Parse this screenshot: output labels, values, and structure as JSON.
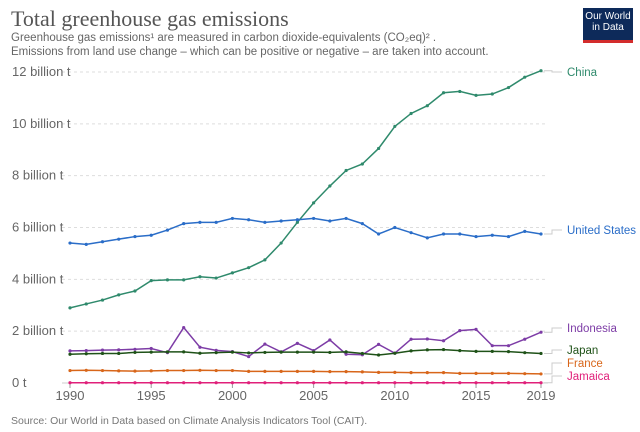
{
  "header": {
    "title": "Total greenhouse gas emissions",
    "subtitle_line1": "Greenhouse gas emissions¹ are measured in carbon dioxide-equivalents (CO₂eq)² .",
    "subtitle_line2": "Emissions from land use change – which can be positive or negative – are taken into account.",
    "logo": "Our World in Data"
  },
  "source": "Source: Our World in Data based on Climate Analysis Indicators Tool (CAIT).",
  "chart_data": {
    "type": "line",
    "title": "Total greenhouse gas emissions",
    "xlabel": "",
    "ylabel": "",
    "x": [
      1990,
      1991,
      1992,
      1993,
      1994,
      1995,
      1996,
      1997,
      1998,
      1999,
      2000,
      2001,
      2002,
      2003,
      2004,
      2005,
      2006,
      2007,
      2008,
      2009,
      2010,
      2011,
      2012,
      2013,
      2014,
      2015,
      2016,
      2017,
      2018,
      2019
    ],
    "xlim": [
      1990,
      2019
    ],
    "ylim": [
      0,
      12
    ],
    "x_ticks": [
      "1990",
      "1995",
      "2000",
      "2005",
      "2010",
      "2015",
      "2019"
    ],
    "y_ticks": [
      {
        "value": 0,
        "label": "0 t"
      },
      {
        "value": 2,
        "label": "2 billion t"
      },
      {
        "value": 4,
        "label": "4 billion t"
      },
      {
        "value": 6,
        "label": "6 billion t"
      },
      {
        "value": 8,
        "label": "8 billion t"
      },
      {
        "value": 10,
        "label": "10 billion t"
      },
      {
        "value": 12,
        "label": "12 billion t"
      }
    ],
    "y_unit": "billion t",
    "grid": "horizontal dashed",
    "legend": "right, inline labels",
    "series": [
      {
        "name": "China",
        "color": "#2f8a6c",
        "values": [
          2.9,
          3.05,
          3.2,
          3.4,
          3.55,
          3.95,
          3.98,
          3.98,
          4.1,
          4.05,
          4.25,
          4.45,
          4.75,
          5.4,
          6.2,
          6.95,
          7.6,
          8.2,
          8.45,
          9.05,
          9.9,
          10.4,
          10.7,
          11.2,
          11.25,
          11.1,
          11.15,
          11.4,
          11.8,
          12.05
        ]
      },
      {
        "name": "United States",
        "color": "#2a6dc8",
        "values": [
          5.4,
          5.35,
          5.45,
          5.55,
          5.65,
          5.7,
          5.9,
          6.15,
          6.2,
          6.2,
          6.35,
          6.3,
          6.2,
          6.25,
          6.3,
          6.35,
          6.25,
          6.35,
          6.15,
          5.75,
          6.0,
          5.8,
          5.6,
          5.75,
          5.75,
          5.65,
          5.7,
          5.65,
          5.85,
          5.75
        ]
      },
      {
        "name": "Indonesia",
        "color": "#7d3ca6",
        "values": [
          1.24,
          1.25,
          1.27,
          1.28,
          1.3,
          1.33,
          1.17,
          2.14,
          1.38,
          1.26,
          1.21,
          1.02,
          1.5,
          1.2,
          1.53,
          1.25,
          1.66,
          1.11,
          1.09,
          1.49,
          1.15,
          1.69,
          1.7,
          1.63,
          2.02,
          2.07,
          1.44,
          1.44,
          1.69,
          1.96
        ]
      },
      {
        "name": "Japan",
        "color": "#1f5218",
        "values": [
          1.11,
          1.13,
          1.14,
          1.14,
          1.18,
          1.19,
          1.2,
          1.2,
          1.15,
          1.17,
          1.19,
          1.16,
          1.18,
          1.19,
          1.19,
          1.19,
          1.18,
          1.2,
          1.14,
          1.08,
          1.15,
          1.24,
          1.28,
          1.29,
          1.25,
          1.22,
          1.22,
          1.21,
          1.17,
          1.14
        ]
      },
      {
        "name": "France",
        "color": "#d8661a",
        "values": [
          0.48,
          0.49,
          0.48,
          0.47,
          0.46,
          0.47,
          0.48,
          0.48,
          0.49,
          0.48,
          0.48,
          0.45,
          0.45,
          0.45,
          0.45,
          0.45,
          0.44,
          0.44,
          0.43,
          0.41,
          0.41,
          0.4,
          0.4,
          0.4,
          0.37,
          0.37,
          0.37,
          0.37,
          0.36,
          0.35
        ]
      },
      {
        "name": "Jamaica",
        "color": "#e0207a",
        "values": [
          0.012,
          0.012,
          0.012,
          0.012,
          0.012,
          0.012,
          0.012,
          0.012,
          0.012,
          0.012,
          0.012,
          0.012,
          0.012,
          0.012,
          0.012,
          0.012,
          0.012,
          0.012,
          0.012,
          0.012,
          0.012,
          0.012,
          0.012,
          0.012,
          0.012,
          0.012,
          0.012,
          0.012,
          0.012,
          0.012
        ]
      }
    ]
  }
}
